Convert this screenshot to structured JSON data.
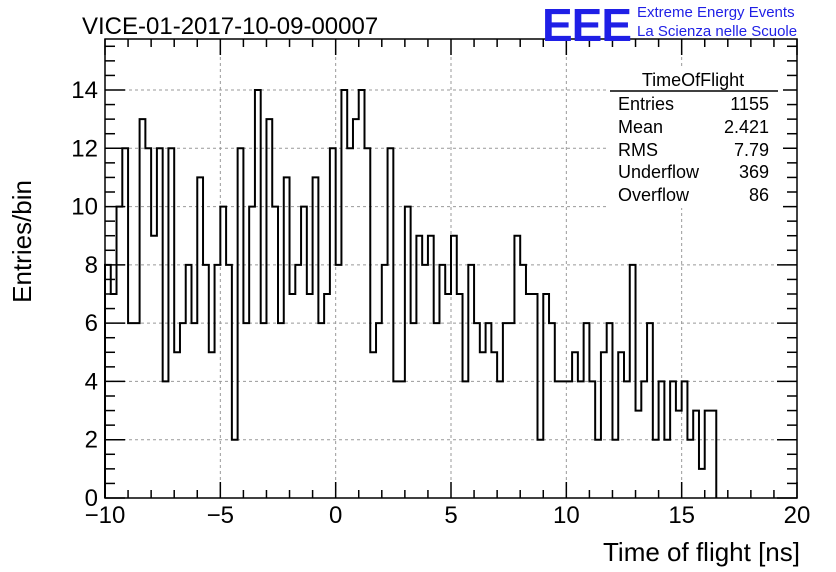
{
  "chart_data": {
    "type": "histogram",
    "title": "VICE-01-2017-10-09-00007",
    "xlabel": "Time of flight [ns]",
    "ylabel": "Entries/bin",
    "xlim": [
      -10,
      20
    ],
    "ylim": [
      0,
      15.75
    ],
    "x_ticks": [
      -10,
      -5,
      0,
      5,
      10,
      15,
      20
    ],
    "x_tick_labels": [
      "−10",
      "−5",
      "0",
      "5",
      "10",
      "15",
      "20"
    ],
    "y_ticks": [
      0,
      2,
      4,
      6,
      8,
      10,
      12,
      14
    ],
    "y_tick_labels": [
      "0",
      "2",
      "4",
      "6",
      "8",
      "10",
      "12",
      "14"
    ],
    "grid": true,
    "bin_width": 0.25,
    "x_start": -10,
    "values": [
      8,
      7,
      10,
      12,
      6,
      6,
      13,
      12,
      9,
      12,
      4,
      12,
      5,
      6,
      8,
      6,
      11,
      8,
      5,
      8,
      10,
      8,
      2,
      12,
      6,
      10,
      14,
      6,
      13,
      10,
      6,
      11,
      7,
      8,
      10,
      7,
      11,
      6,
      7,
      12,
      8,
      14,
      12,
      13,
      14,
      12,
      5,
      6,
      8,
      12,
      4,
      4,
      10,
      6,
      9,
      8,
      9,
      6,
      8,
      7,
      9,
      7,
      4,
      8,
      6,
      5,
      6,
      5,
      4,
      6,
      6,
      9,
      8,
      7,
      7,
      2,
      7,
      6,
      4,
      4,
      4,
      5,
      4,
      6,
      4,
      2,
      5,
      6,
      2,
      5,
      4,
      8,
      3,
      4,
      6,
      2,
      4,
      2,
      4,
      3,
      4,
      2,
      3,
      1,
      3,
      3
    ],
    "stats_box": {
      "title": "TimeOfFlight",
      "rows": [
        {
          "label": "Entries",
          "value": "1155"
        },
        {
          "label": "Mean",
          "value": "2.421"
        },
        {
          "label": "RMS",
          "value": "7.79"
        },
        {
          "label": "Underflow",
          "value": "369"
        },
        {
          "label": "Overflow",
          "value": "86"
        }
      ]
    }
  },
  "branding": {
    "logo_text": "EEE",
    "line1": "Extreme Energy Events",
    "line2": "La Scienza nelle Scuole",
    "color": "#1f1fe6"
  }
}
